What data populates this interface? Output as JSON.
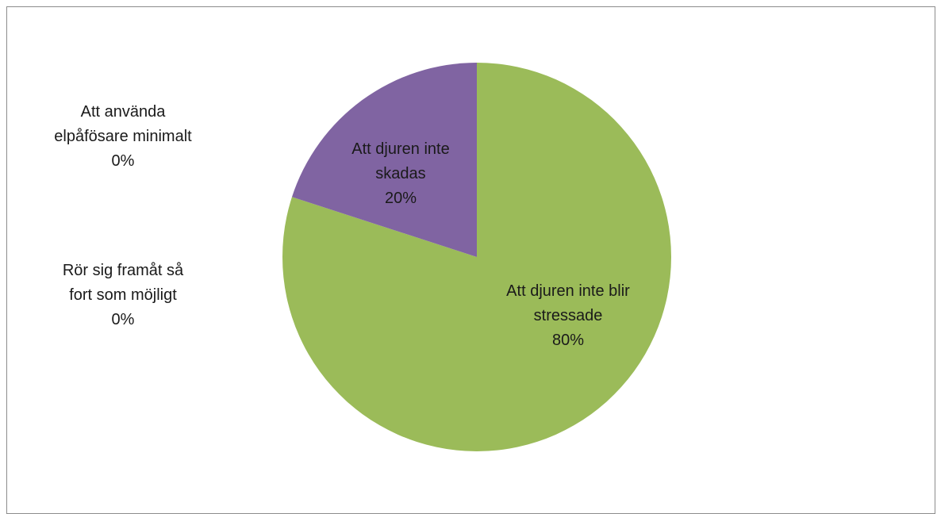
{
  "chart_data": {
    "type": "pie",
    "title": "",
    "slices": [
      {
        "category_line1": "Att djuren inte blir",
        "category_line2": "stressade",
        "label": "Att djuren inte blir stressade",
        "value": 80,
        "percent_label": "80%",
        "color": "#9bbb59"
      },
      {
        "category_line1": "Att djuren inte",
        "category_line2": "skadas",
        "label": "Att djuren inte skadas",
        "value": 20,
        "percent_label": "20%",
        "color": "#8064a2"
      },
      {
        "category_line1": "Att använda",
        "category_line2": "elpåfösare minimalt",
        "label": "Att använda elpåfösare minimalt",
        "value": 0,
        "percent_label": "0%",
        "color": "#4f81bd"
      },
      {
        "category_line1": "Rör sig framåt så",
        "category_line2": "fort som möjligt",
        "label": "Rör sig framåt så fort som möjligt",
        "value": 0,
        "percent_label": "0%",
        "color": "#c0504d"
      }
    ],
    "start_angle_deg": 0,
    "direction": "clockwise",
    "legend": "none"
  }
}
